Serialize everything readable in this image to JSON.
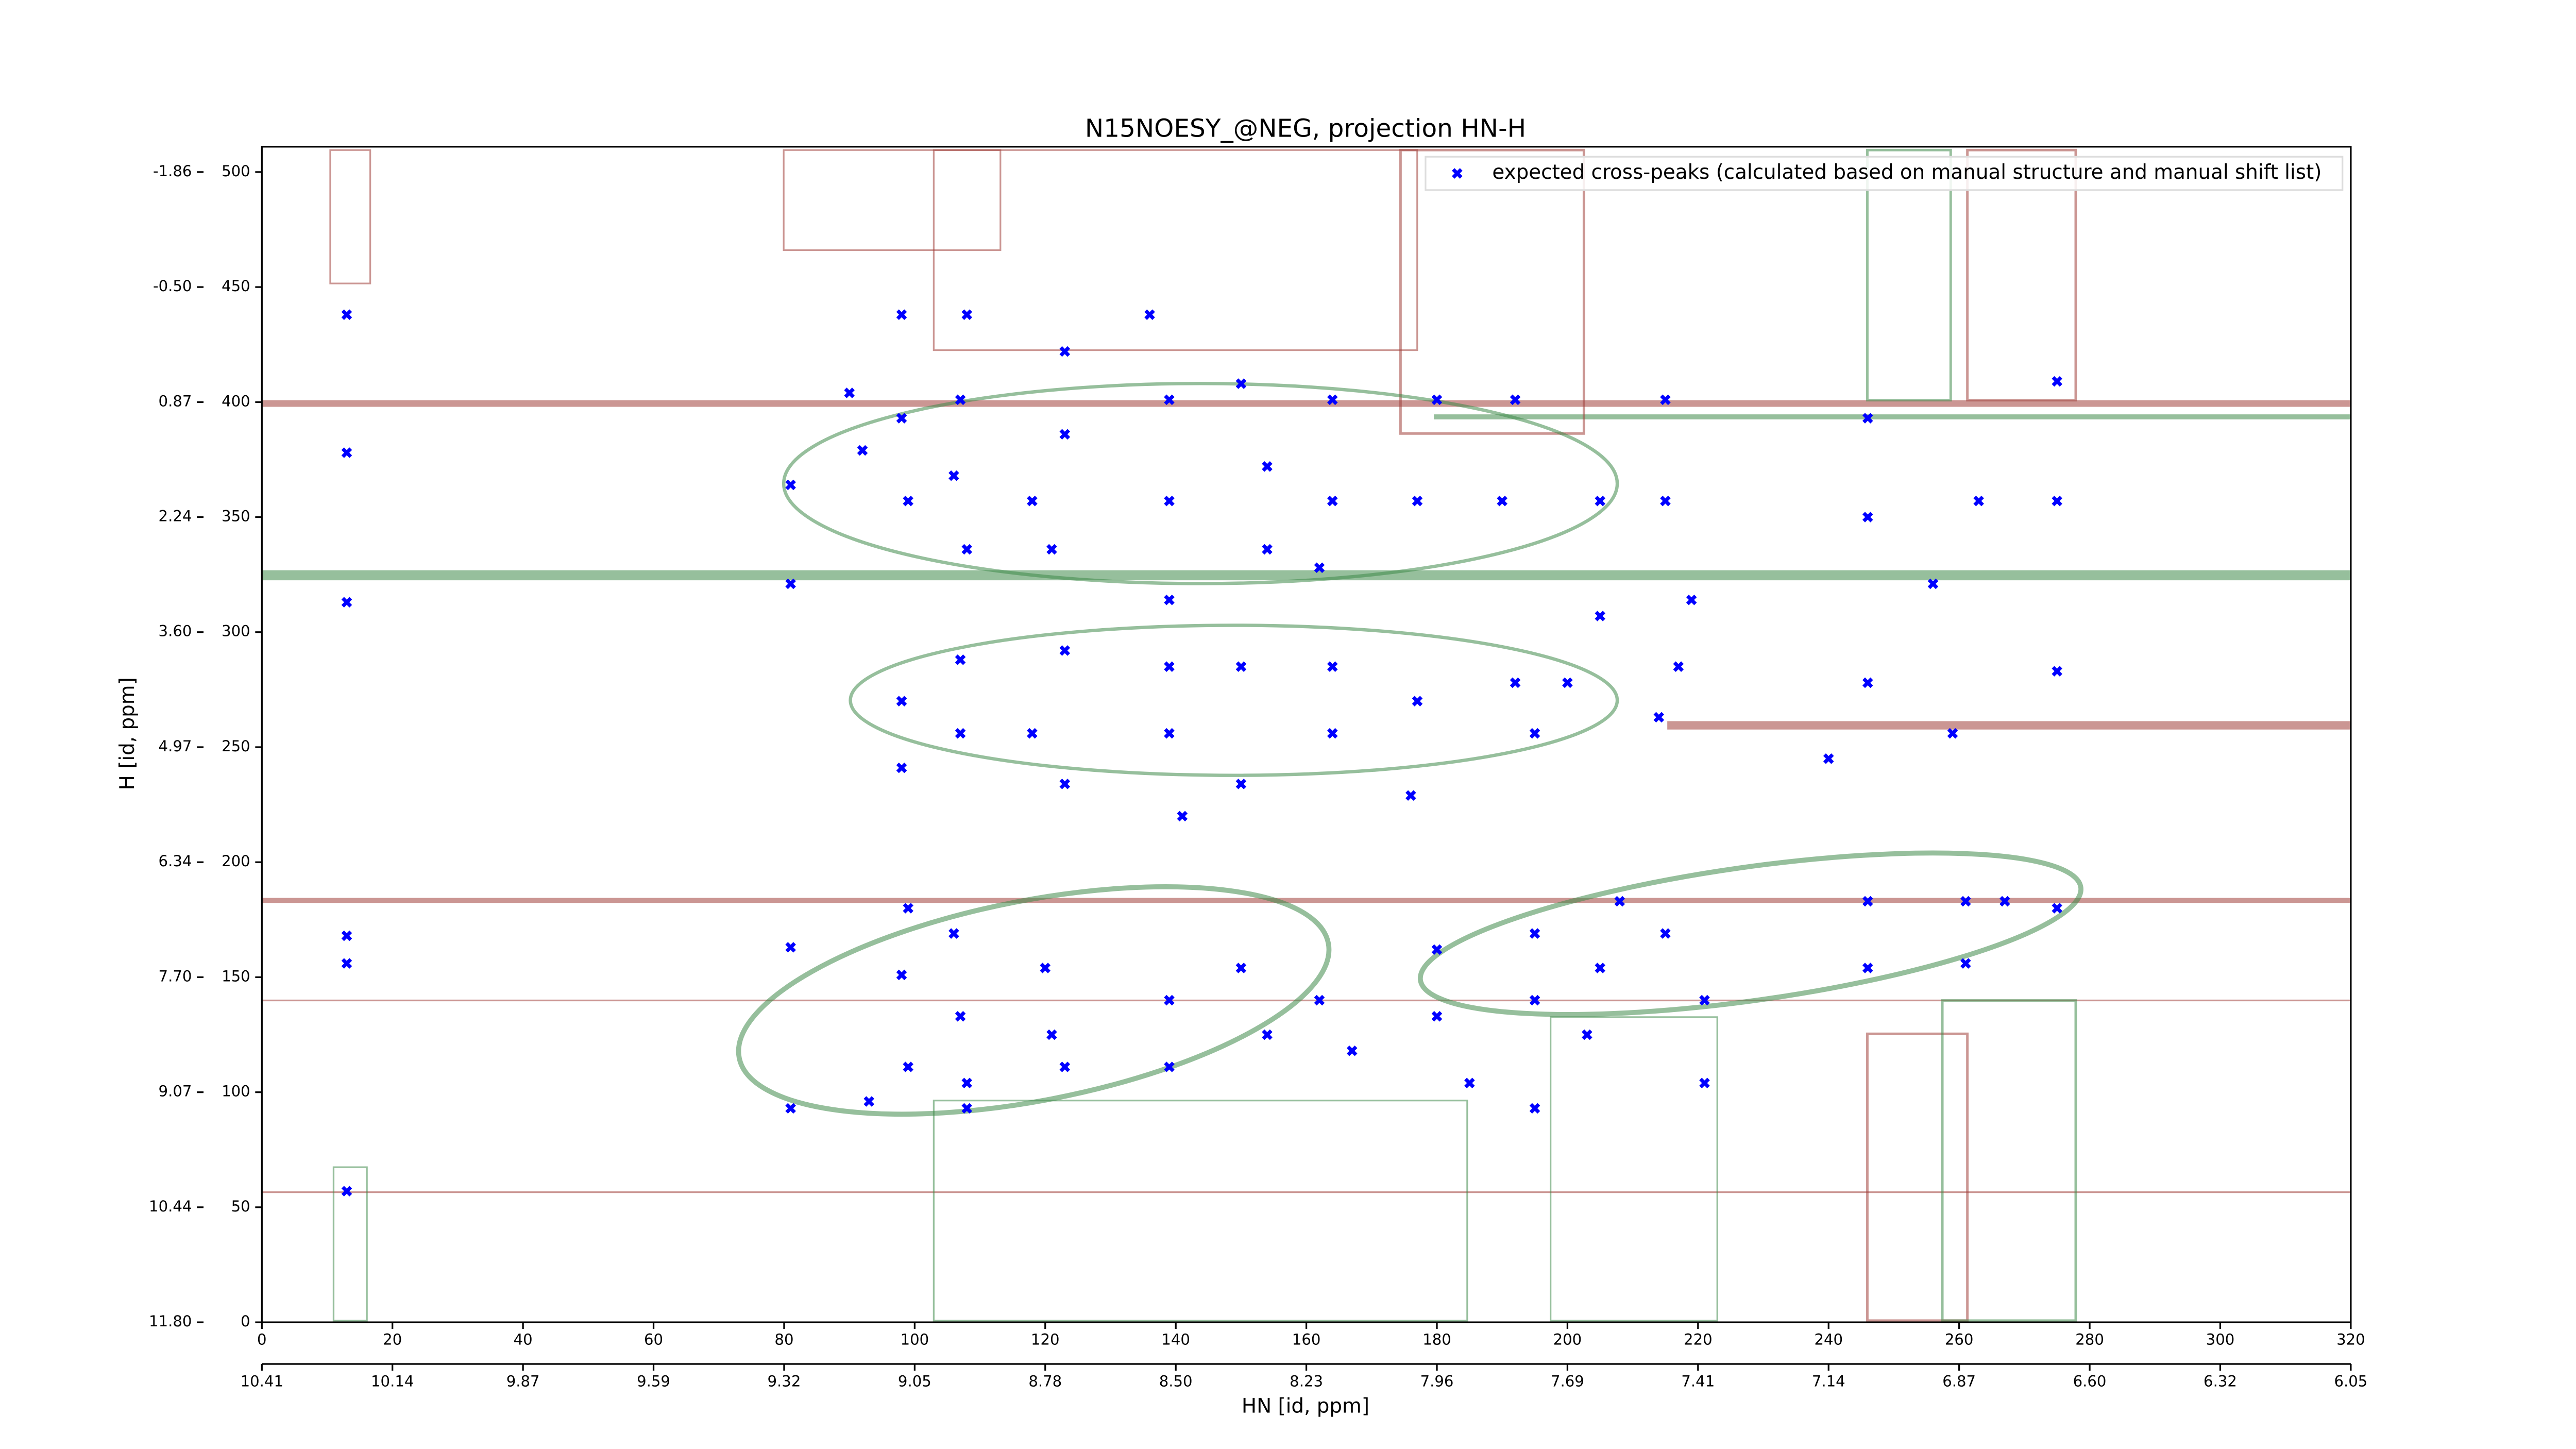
{
  "chart_data": {
    "type": "scatter",
    "title": "N15NOESY_@NEG, projection HN-H",
    "xlabel": "HN [id, ppm]",
    "ylabel": "H [id, ppm]",
    "legend": "upper right",
    "xlim": [
      0,
      320
    ],
    "ylim": [
      0,
      511
    ],
    "xticks": [
      0,
      20,
      40,
      60,
      80,
      100,
      120,
      140,
      160,
      180,
      200,
      220,
      240,
      260,
      280,
      300,
      320
    ],
    "x2ticks": [
      {
        "value": 0,
        "label": "10.41"
      },
      {
        "value": 20,
        "label": "10.14"
      },
      {
        "value": 40,
        "label": "9.87"
      },
      {
        "value": 60,
        "label": "9.59"
      },
      {
        "value": 80,
        "label": "9.32"
      },
      {
        "value": 100,
        "label": "9.05"
      },
      {
        "value": 120,
        "label": "8.78"
      },
      {
        "value": 140,
        "label": "8.50"
      },
      {
        "value": 160,
        "label": "8.23"
      },
      {
        "value": 180,
        "label": "7.96"
      },
      {
        "value": 200,
        "label": "7.69"
      },
      {
        "value": 220,
        "label": "7.41"
      },
      {
        "value": 240,
        "label": "7.14"
      },
      {
        "value": 260,
        "label": "6.87"
      },
      {
        "value": 280,
        "label": "6.60"
      },
      {
        "value": 300,
        "label": "6.32"
      },
      {
        "value": 320,
        "label": "6.05"
      }
    ],
    "yticks": [
      0,
      50,
      100,
      150,
      200,
      250,
      300,
      350,
      400,
      450,
      500
    ],
    "y2ticks": [
      {
        "value": 0,
        "label": "11.80"
      },
      {
        "value": 50,
        "label": "10.44"
      },
      {
        "value": 100,
        "label": "9.07"
      },
      {
        "value": 150,
        "label": "7.70"
      },
      {
        "value": 200,
        "label": "6.34"
      },
      {
        "value": 250,
        "label": "4.97"
      },
      {
        "value": 300,
        "label": "3.60"
      },
      {
        "value": 350,
        "label": "2.24"
      },
      {
        "value": 400,
        "label": "0.87"
      },
      {
        "value": 450,
        "label": "-0.50"
      },
      {
        "value": 500,
        "label": "-1.86"
      }
    ],
    "series": [
      {
        "name": "expected cross-peaks (calculated based on manual structure and manual shift list)",
        "color": "#0000ff",
        "x": [
          13,
          13,
          13,
          13,
          13,
          13,
          81,
          81,
          81,
          81,
          90,
          92,
          98,
          98,
          99,
          98,
          98,
          99,
          98,
          99,
          93,
          108,
          107,
          106,
          108,
          107,
          107,
          106,
          107,
          108,
          108,
          123,
          123,
          118,
          121,
          123,
          118,
          123,
          120,
          121,
          123,
          136,
          139,
          139,
          139,
          139,
          139,
          141,
          139,
          139,
          150,
          154,
          154,
          150,
          150,
          150,
          154,
          164,
          164,
          162,
          164,
          164,
          162,
          167,
          180,
          177,
          177,
          176,
          180,
          180,
          185,
          192,
          190,
          192,
          195,
          195,
          195,
          195,
          205,
          205,
          200,
          205,
          203,
          208,
          215,
          215,
          219,
          217,
          214,
          215,
          221,
          221,
          246,
          246,
          246,
          240,
          246,
          246,
          256,
          259,
          261,
          261,
          263,
          275,
          275,
          275,
          275,
          267
        ],
        "y": [
          438,
          378,
          313,
          168,
          156,
          57,
          364,
          321,
          163,
          93,
          404,
          379,
          438,
          393,
          357,
          270,
          241,
          180,
          151,
          111,
          96,
          438,
          401,
          368,
          336,
          288,
          256,
          169,
          133,
          104,
          93,
          422,
          386,
          357,
          336,
          292,
          256,
          234,
          154,
          125,
          111,
          438,
          401,
          357,
          314,
          285,
          256,
          220,
          140,
          111,
          408,
          372,
          336,
          285,
          234,
          154,
          125,
          401,
          357,
          328,
          285,
          256,
          140,
          118,
          401,
          357,
          270,
          229,
          162,
          133,
          104,
          401,
          357,
          278,
          256,
          169,
          140,
          93,
          357,
          307,
          278,
          154,
          125,
          183,
          401,
          357,
          314,
          285,
          263,
          169,
          140,
          104,
          393,
          350,
          278,
          245,
          183,
          154,
          321,
          256,
          183,
          156,
          357,
          409,
          357,
          283,
          180,
          183
        ]
      }
    ]
  }
}
